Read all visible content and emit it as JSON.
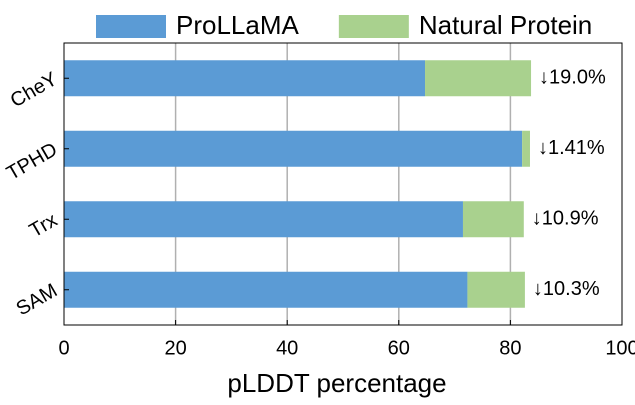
{
  "chart_data": {
    "type": "stacked-barh",
    "xlabel": "pLDDT percentage",
    "categories": [
      "CheY",
      "TPHD",
      "Trx",
      "SAM"
    ],
    "series": [
      {
        "name": "ProLLaMA",
        "color": "#5b9bd5",
        "values": [
          64.7,
          82.1,
          71.5,
          72.3
        ]
      },
      {
        "name": "Natural Protein",
        "color": "#a9d18e",
        "values": [
          19.0,
          1.41,
          10.9,
          10.3
        ],
        "value_labels": [
          "↓19.0%",
          "↓1.41%",
          "↓10.9%",
          "↓10.3%"
        ]
      }
    ],
    "xlim": [
      0,
      100
    ],
    "xticks": [
      0,
      20,
      40,
      60,
      80,
      100
    ],
    "grid": true,
    "legend": "top"
  }
}
